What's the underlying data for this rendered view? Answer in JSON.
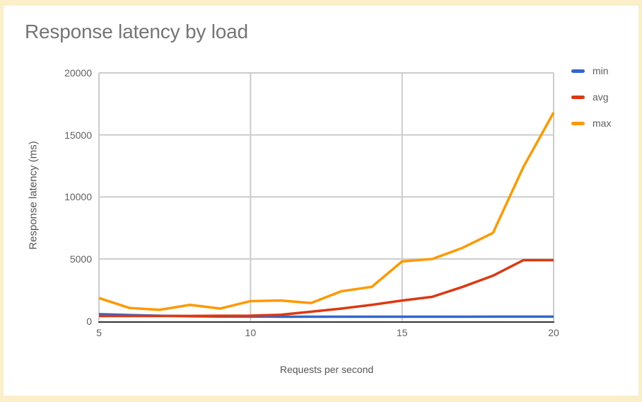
{
  "title": "Response latency by load",
  "colors": {
    "frame": "#faefc8",
    "title_text": "#757575",
    "tick_text": "#616161",
    "axis_title_text": "#555555",
    "gridline": "#cccccc",
    "axis_line": "#333333",
    "series_blue": "#3366CC",
    "series_red": "#DC3912",
    "series_orange": "#FF9900"
  },
  "legend": {
    "items": [
      "min",
      "avg",
      "max"
    ]
  },
  "chart_data": {
    "type": "line",
    "title": "Response latency by load",
    "xlabel": "Requests per second",
    "ylabel": "Response latency (ms)",
    "xlim": [
      5,
      20
    ],
    "ylim": [
      0,
      20000
    ],
    "xticks": [
      5,
      10,
      15,
      20
    ],
    "yticks": [
      0,
      5000,
      10000,
      15000,
      20000
    ],
    "grid": true,
    "legend_position": "right",
    "x": [
      5,
      6,
      7,
      8,
      9,
      10,
      11,
      12,
      13,
      14,
      15,
      16,
      17,
      18,
      19,
      20
    ],
    "series": [
      {
        "name": "min",
        "color": "#3366CC",
        "values": [
          550,
          480,
          420,
          380,
          360,
          350,
          345,
          340,
          340,
          340,
          340,
          345,
          345,
          350,
          350,
          350
        ]
      },
      {
        "name": "avg",
        "color": "#DC3912",
        "values": [
          400,
          400,
          400,
          410,
          420,
          430,
          500,
          750,
          1000,
          1300,
          1650,
          1950,
          2750,
          3650,
          4900,
          4900
        ]
      },
      {
        "name": "max",
        "color": "#FF9900",
        "values": [
          1850,
          1050,
          900,
          1300,
          1000,
          1600,
          1650,
          1450,
          2400,
          2750,
          4800,
          5000,
          5900,
          7100,
          12400,
          16800
        ]
      }
    ]
  }
}
